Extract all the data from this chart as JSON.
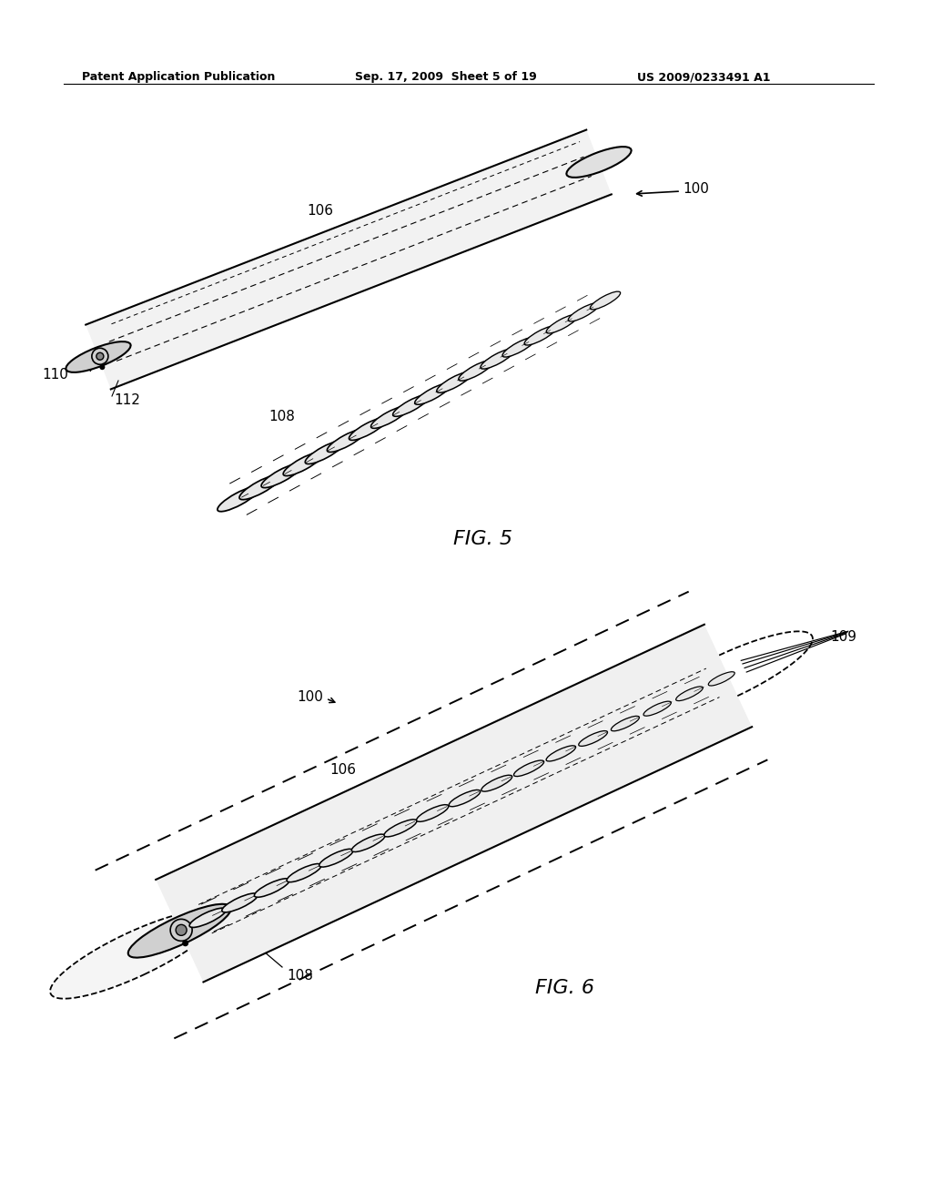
{
  "bg_color": "#ffffff",
  "line_color": "#000000",
  "header_left": "Patent Application Publication",
  "header_mid": "Sep. 17, 2009  Sheet 5 of 19",
  "header_right": "US 2009/0233491 A1",
  "fig5_label": "FIG. 5",
  "fig6_label": "FIG. 6",
  "label_100_fig5": "100",
  "label_106_fig5": "106",
  "label_108_fig5": "108",
  "label_110": "110",
  "label_112": "112",
  "label_100_fig6": "100",
  "label_106_fig6": "106",
  "label_108_fig6": "108",
  "label_109": "109",
  "font_header": 9,
  "font_label": 11,
  "font_fig": 14
}
